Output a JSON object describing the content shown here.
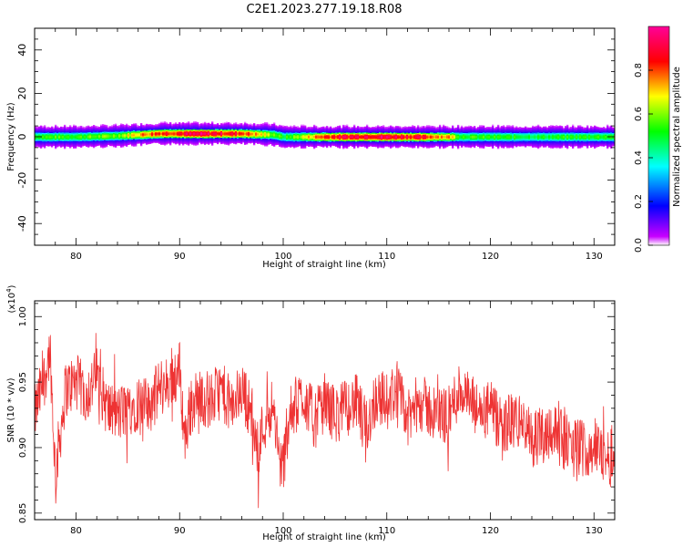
{
  "figure": {
    "title": "C2E1.2023.277.19.18.R08"
  },
  "chart_data": [
    {
      "type": "heatmap",
      "xlabel": "Height of straight line (km)",
      "ylabel": "Frequency (Hz)",
      "xlim": [
        76,
        132
      ],
      "ylim": [
        -50,
        50
      ],
      "xticks": [
        80,
        90,
        100,
        110,
        120,
        130
      ],
      "yticks": [
        -40,
        -20,
        0,
        20,
        40
      ],
      "grid": false,
      "colorbar": {
        "label": "Normalized spectral amplitude",
        "range": [
          0,
          1
        ],
        "ticks": [
          0.0,
          0.2,
          0.4,
          0.6,
          0.8
        ],
        "colormap": "rainbow (magenta-blue-cyan-green-yellow-red-pink)"
      },
      "profile": [
        {
          "x": 76,
          "center": 0,
          "halfwidth": 2,
          "peak": 0.55
        },
        {
          "x": 80,
          "center": 0,
          "halfwidth": 2,
          "peak": 0.55
        },
        {
          "x": 84,
          "center": 0.5,
          "halfwidth": 2,
          "peak": 0.6
        },
        {
          "x": 86,
          "center": 1,
          "halfwidth": 2,
          "peak": 0.75
        },
        {
          "x": 88,
          "center": 1.5,
          "halfwidth": 2,
          "peak": 0.85
        },
        {
          "x": 92,
          "center": 1.5,
          "halfwidth": 2,
          "peak": 0.92
        },
        {
          "x": 96,
          "center": 1.5,
          "halfwidth": 2,
          "peak": 0.85
        },
        {
          "x": 99,
          "center": 1,
          "halfwidth": 2,
          "peak": 0.6
        },
        {
          "x": 100,
          "center": 0,
          "halfwidth": 2,
          "peak": 0.5
        },
        {
          "x": 104,
          "center": 0,
          "halfwidth": 2,
          "peak": 0.85
        },
        {
          "x": 108,
          "center": 0,
          "halfwidth": 2,
          "peak": 0.95
        },
        {
          "x": 112,
          "center": 0,
          "halfwidth": 2,
          "peak": 0.9
        },
        {
          "x": 116,
          "center": 0,
          "halfwidth": 2,
          "peak": 0.75
        },
        {
          "x": 117,
          "center": 0,
          "halfwidth": 2,
          "peak": 0.55
        },
        {
          "x": 124,
          "center": 0,
          "halfwidth": 2,
          "peak": 0.5
        },
        {
          "x": 132,
          "center": 0,
          "halfwidth": 2,
          "peak": 0.55
        }
      ]
    },
    {
      "type": "line",
      "xlabel": "Height of straight line (km)",
      "ylabel": "SNR (10 * v/v)",
      "yscale_label": "(x10",
      "yscale_exp": "4",
      "yscale_close": ")",
      "xlim": [
        76,
        132
      ],
      "ylim": [
        0.845,
        1.012
      ],
      "xticks": [
        80,
        90,
        100,
        110,
        120,
        130
      ],
      "yticks": [
        0.85,
        0.9,
        0.95,
        1.0
      ],
      "grid": false,
      "series": [
        {
          "color": "#ee3333",
          "x": [
            76,
            77,
            77.5,
            78,
            79,
            80,
            81,
            82,
            83,
            84,
            85,
            86,
            87,
            88,
            89,
            90,
            90.5,
            91,
            92,
            93,
            94,
            95,
            96,
            97,
            97.5,
            98,
            99,
            99.5,
            100,
            100.5,
            101,
            102,
            103,
            104,
            105,
            106,
            107,
            108,
            109,
            110,
            111,
            112,
            113,
            114,
            115,
            116,
            117,
            118,
            119,
            120,
            121,
            122,
            123,
            124,
            125,
            126,
            127,
            128,
            129,
            130,
            131,
            132
          ],
          "y": [
            0.925,
            0.955,
            0.975,
            0.88,
            0.945,
            0.95,
            0.94,
            0.955,
            0.93,
            0.925,
            0.93,
            0.935,
            0.93,
            0.945,
            0.95,
            0.96,
            0.905,
            0.93,
            0.94,
            0.935,
            0.945,
            0.93,
            0.945,
            0.925,
            0.895,
            0.915,
            0.935,
            0.895,
            0.885,
            0.92,
            0.93,
            0.94,
            0.92,
            0.935,
            0.925,
            0.93,
            0.935,
            0.915,
            0.94,
            0.935,
            0.945,
            0.92,
            0.935,
            0.93,
            0.925,
            0.925,
            0.945,
            0.935,
            0.925,
            0.93,
            0.915,
            0.92,
            0.92,
            0.905,
            0.91,
            0.915,
            0.905,
            0.9,
            0.9,
            0.9,
            0.895,
            0.89
          ]
        }
      ]
    }
  ]
}
